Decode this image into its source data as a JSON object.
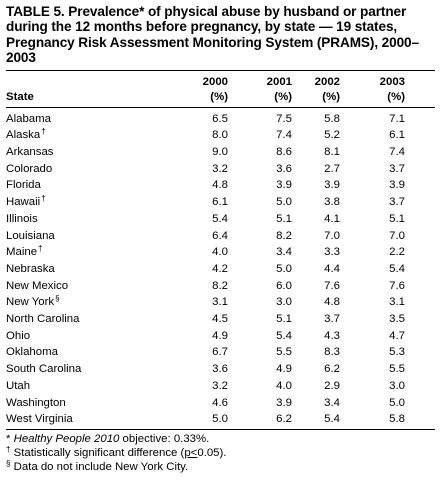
{
  "title": "TABLE 5. Prevalence* of physical abuse by husband or partner during the 12 months before pregnancy, by state — 19 states, Pregnancy Risk Assessment Monitoring System (PRAMS), 2000–2003",
  "header": {
    "state_label": "State",
    "years": [
      "2000",
      "2001",
      "2002",
      "2003"
    ],
    "unit": "(%)"
  },
  "rows": [
    {
      "state": "Alabama",
      "mark": "",
      "values": [
        "6.5",
        "7.5",
        "5.8",
        "7.1"
      ]
    },
    {
      "state": "Alaska",
      "mark": "†",
      "values": [
        "8.0",
        "7.4",
        "5.2",
        "6.1"
      ]
    },
    {
      "state": "Arkansas",
      "mark": "",
      "values": [
        "9.0",
        "8.6",
        "8.1",
        "7.4"
      ]
    },
    {
      "state": "Colorado",
      "mark": "",
      "values": [
        "3.2",
        "3.6",
        "2.7",
        "3.7"
      ]
    },
    {
      "state": "Florida",
      "mark": "",
      "values": [
        "4.8",
        "3.9",
        "3.9",
        "3.9"
      ]
    },
    {
      "state": "Hawaii",
      "mark": "†",
      "values": [
        "6.1",
        "5.0",
        "3.8",
        "3.7"
      ]
    },
    {
      "state": "Illinois",
      "mark": "",
      "values": [
        "5.4",
        "5.1",
        "4.1",
        "5.1"
      ]
    },
    {
      "state": "Louisiana",
      "mark": "",
      "values": [
        "6.4",
        "8.2",
        "7.0",
        "7.0"
      ]
    },
    {
      "state": "Maine",
      "mark": "†",
      "values": [
        "4.0",
        "3.4",
        "3.3",
        "2.2"
      ]
    },
    {
      "state": "Nebraska",
      "mark": "",
      "values": [
        "4.2",
        "5.0",
        "4.4",
        "5.4"
      ]
    },
    {
      "state": "New Mexico",
      "mark": "",
      "values": [
        "8.2",
        "6.0",
        "7.6",
        "7.6"
      ]
    },
    {
      "state": "New York",
      "mark": "§",
      "values": [
        "3.1",
        "3.0",
        "4.8",
        "3.1"
      ]
    },
    {
      "state": "North Carolina",
      "mark": "",
      "values": [
        "4.5",
        "5.1",
        "3.7",
        "3.5"
      ]
    },
    {
      "state": "Ohio",
      "mark": "",
      "values": [
        "4.9",
        "5.4",
        "4.3",
        "4.7"
      ]
    },
    {
      "state": "Oklahoma",
      "mark": "",
      "values": [
        "6.7",
        "5.5",
        "8.3",
        "5.3"
      ]
    },
    {
      "state": "South Carolina",
      "mark": "",
      "values": [
        "3.6",
        "4.9",
        "6.2",
        "5.5"
      ]
    },
    {
      "state": "Utah",
      "mark": "",
      "values": [
        "3.2",
        "4.0",
        "2.9",
        "3.0"
      ]
    },
    {
      "state": "Washington",
      "mark": "",
      "values": [
        "4.6",
        "3.9",
        "3.4",
        "5.0"
      ]
    },
    {
      "state": "West Virginia",
      "mark": "",
      "values": [
        "5.0",
        "6.2",
        "5.4",
        "5.8"
      ]
    }
  ],
  "footnotes": {
    "star": {
      "mark": "*",
      "italic": "Healthy People 2010",
      "rest": " objective: 0.33%."
    },
    "dagger": {
      "mark": "†",
      "before": " Statistically significant difference (",
      "underlined": "p<",
      "after": "0.05)."
    },
    "section": {
      "mark": "§",
      "text": " Data do not include New York City."
    }
  }
}
